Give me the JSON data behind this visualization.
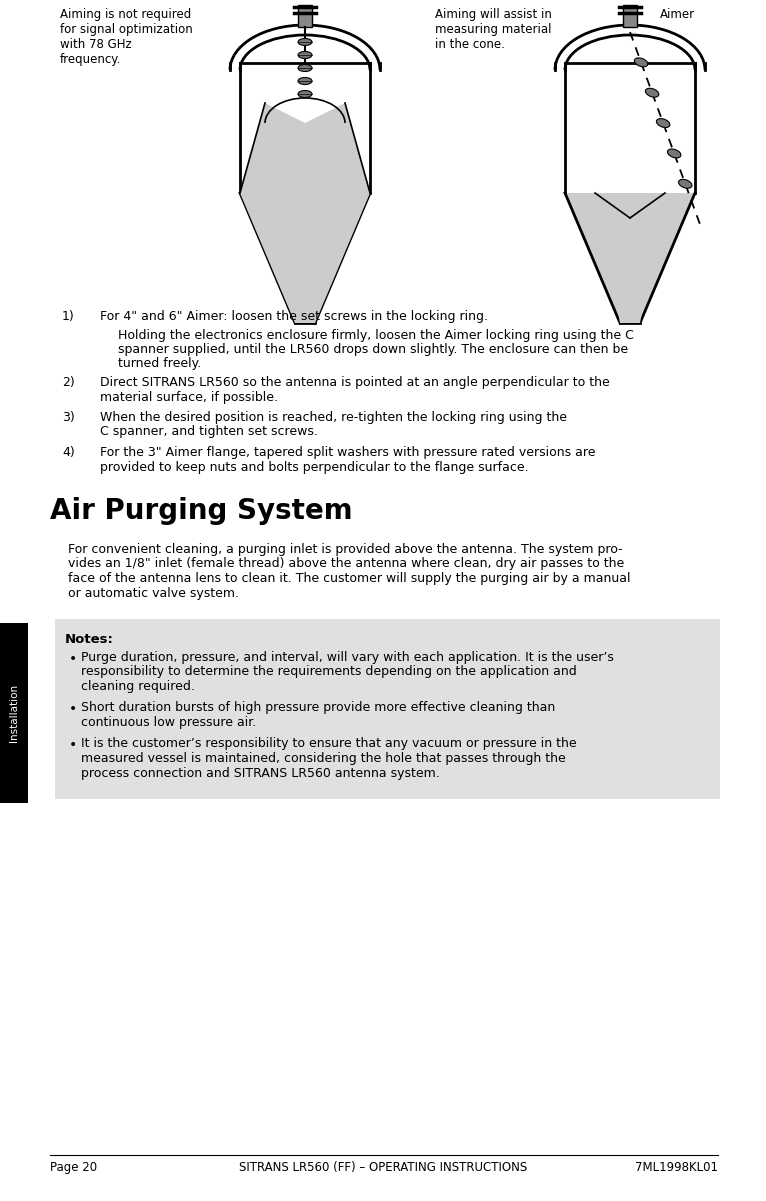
{
  "page_bg": "#ffffff",
  "footer_text_left": "Page 20",
  "footer_text_center": "SITRANS LR560 (FF) – OPERATING INSTRUCTIONS",
  "footer_text_right": "7ML1998KL01",
  "footer_font_size": 8.5,
  "sidebar_color": "#000000",
  "sidebar_label": "Installation",
  "sidebar_label_fontsize": 7.5,
  "caption_left": "Aiming is not required\nfor signal optimization\nwith 78 GHz\nfrequency.",
  "caption_middle": "Aiming will assist in\nmeasuring material\nin the cone.",
  "caption_right": "Aimer",
  "caption_fontsize": 8.5,
  "section_title": "Air Purging System",
  "section_title_fontsize": 20,
  "body_fontsize": 9.0,
  "notes_bg": "#e0e0e0",
  "notes_title": "Notes:",
  "notes_title_fontsize": 9.5,
  "list_items": [
    {
      "num": "1)",
      "line1": "For 4\" and 6\" Aimer: loosen the set screws in the locking ring.",
      "extra": "Holding the electronics enclosure firmly, loosen the Aimer locking ring using the C\nspanner supplied, until the LR560 drops down slightly. The enclosure can then be\nturned freely."
    },
    {
      "num": "2)",
      "line1": "Direct SITRANS LR560 so the antenna is pointed at an angle perpendicular to the\nmaterial surface, if possible.",
      "extra": ""
    },
    {
      "num": "3)",
      "line1": "When the desired position is reached, re-tighten the locking ring using the\nC spanner, and tighten set screws.",
      "extra": ""
    },
    {
      "num": "4)",
      "line1": "For the 3\" Aimer flange, tapered split washers with pressure rated versions are\nprovided to keep nuts and bolts perpendicular to the flange surface.",
      "extra": ""
    }
  ],
  "air_purging_text": "For convenient cleaning, a purging inlet is provided above the antenna. The system pro-\nvides an 1/8\" inlet (female thread) above the antenna where clean, dry air passes to the\nface of the antenna lens to clean it. The customer will supply the purging air by a manual\nor automatic valve system.",
  "notes_bullets": [
    "Purge duration, pressure, and interval, will vary with each application. It is the user’s\nresponsibility to determine the requirements depending on the application and\ncleaning required.",
    "Short duration bursts of high pressure provide more effective cleaning than\ncontinuous low pressure air.",
    "It is the customer’s responsibility to ensure that any vacuum or pressure in the\nmeasured vessel is maintained, considering the hole that passes through the\nprocess connection and SITRANS LR560 antenna system."
  ]
}
